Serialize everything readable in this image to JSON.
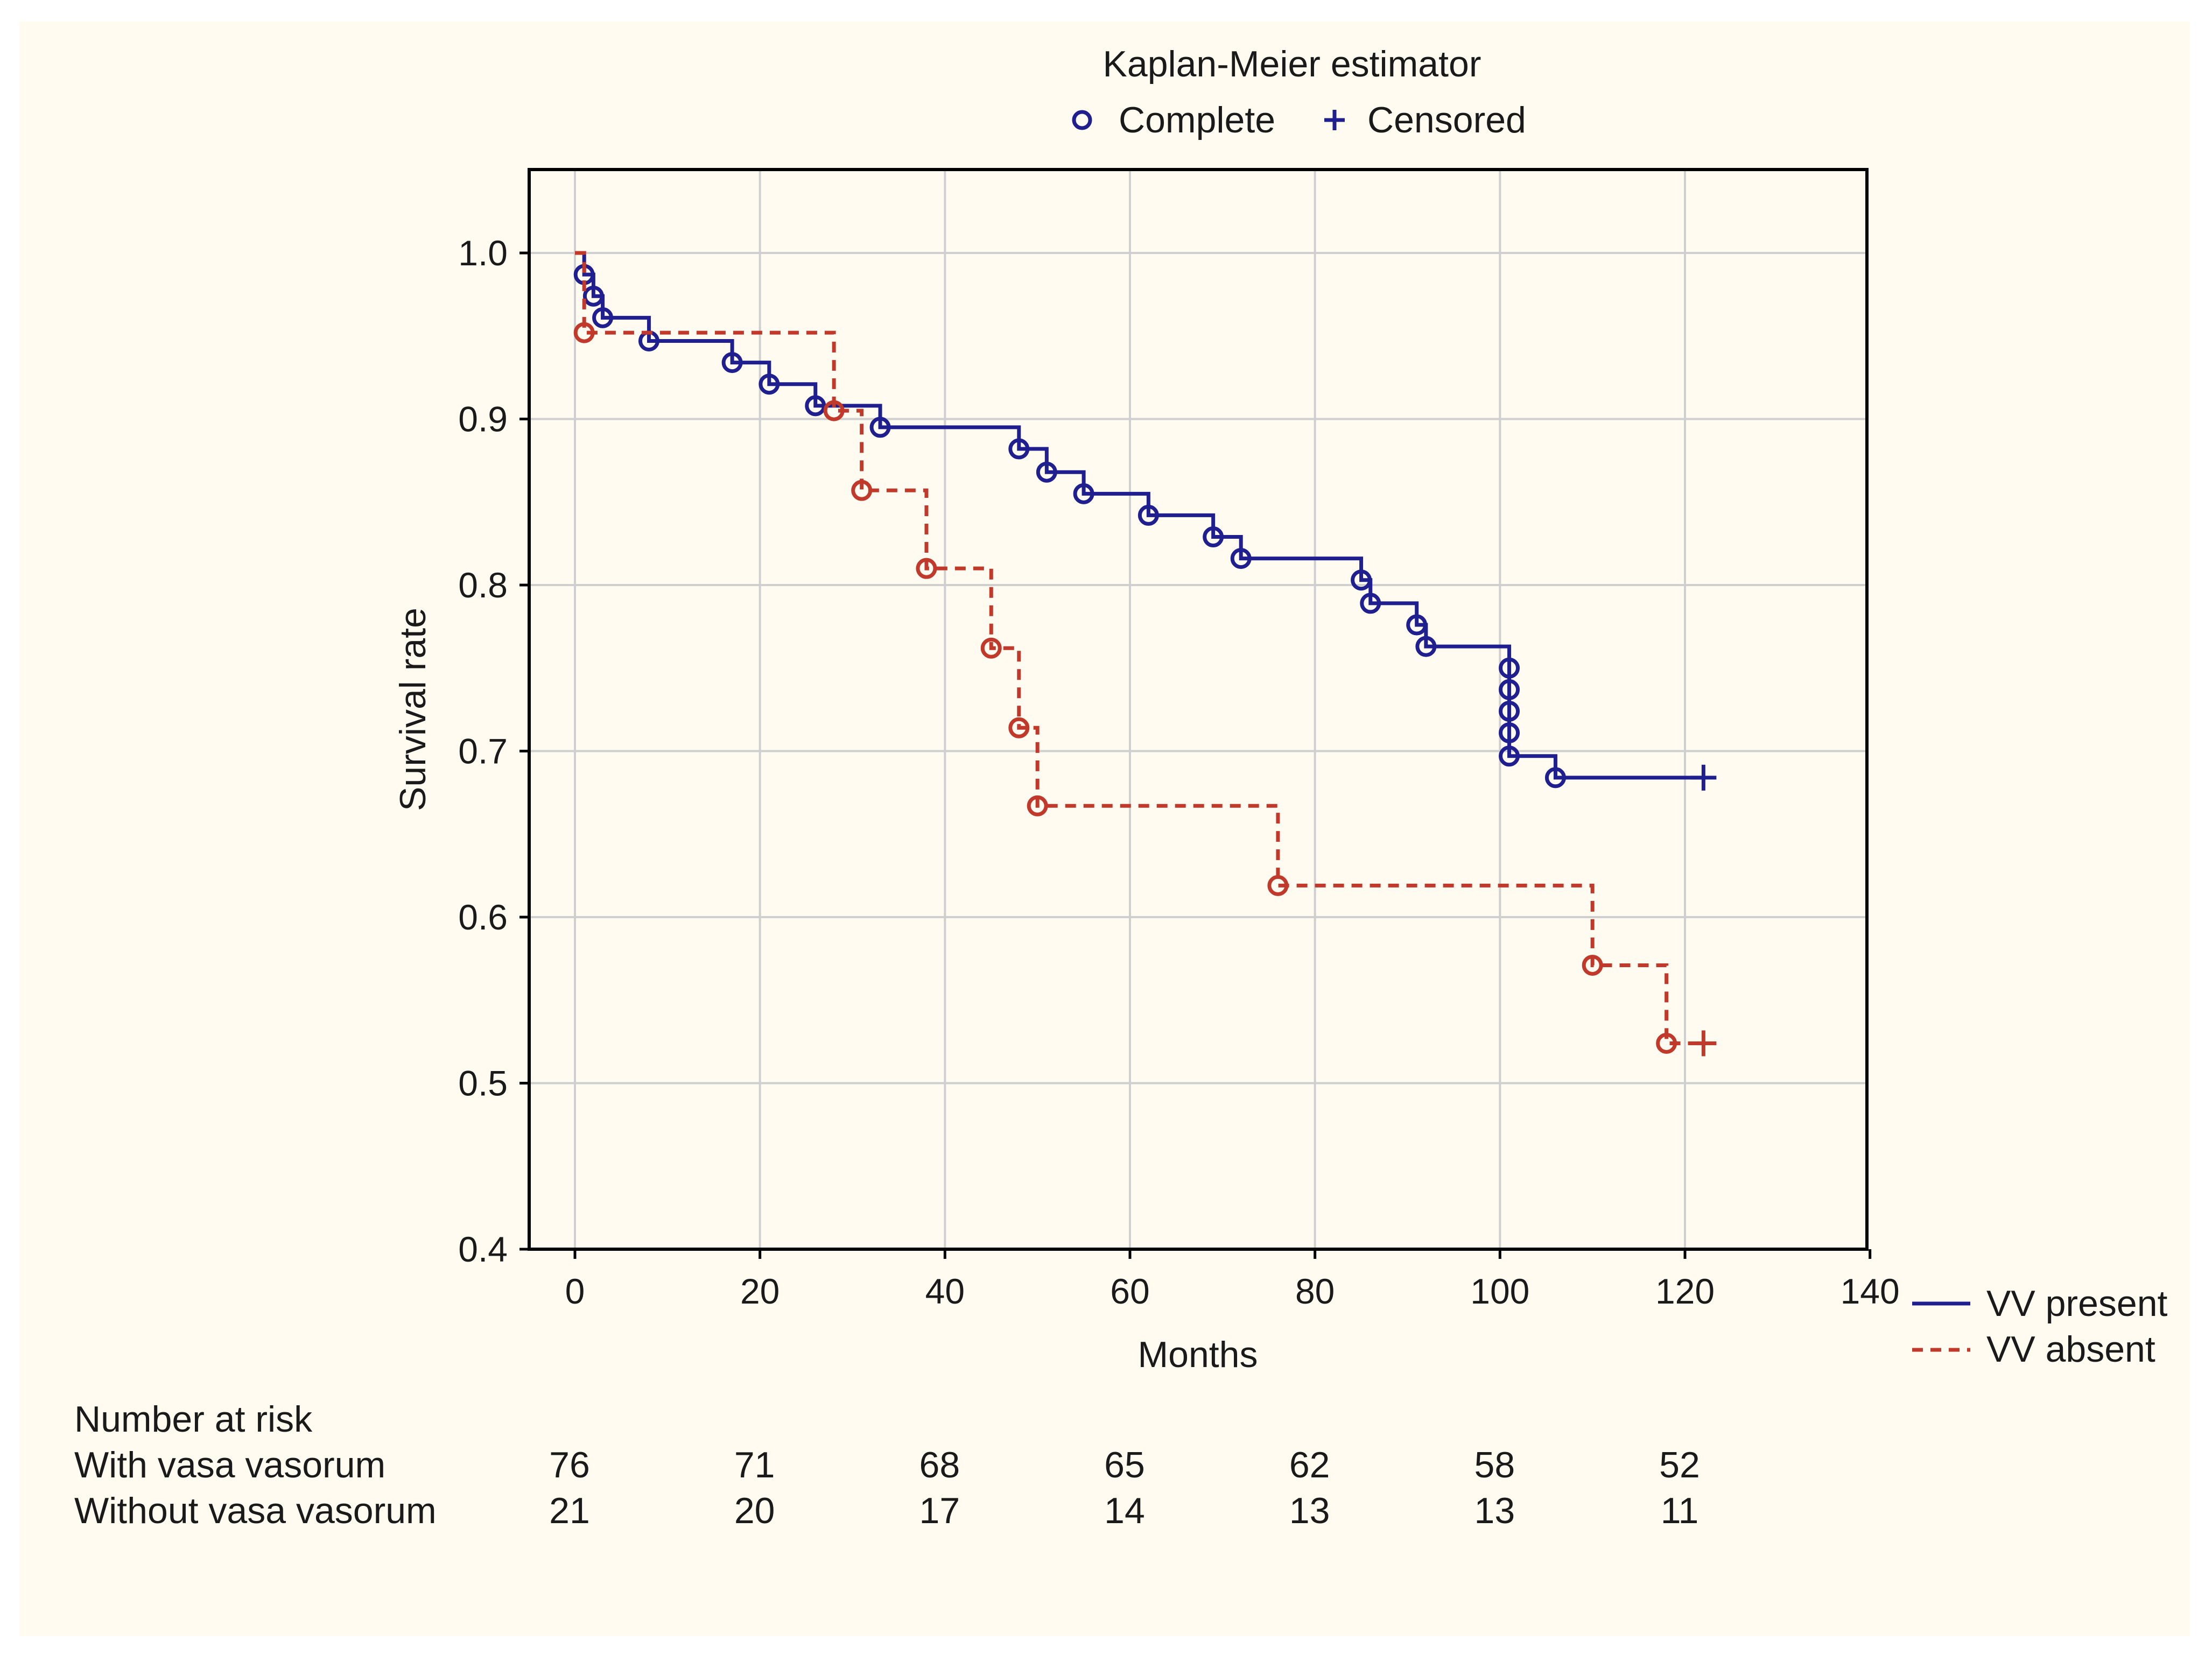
{
  "chart_data": {
    "type": "line",
    "title": "Kaplan-Meier estimator",
    "marker_legend": [
      {
        "symbol": "o",
        "label": "Complete"
      },
      {
        "symbol": "+",
        "label": "Censored"
      }
    ],
    "xlabel": "Months",
    "ylabel": "Survival rate",
    "xlim": [
      -5,
      140
    ],
    "ylim": [
      0.4,
      1.05
    ],
    "xticks": [
      0,
      20,
      40,
      60,
      80,
      100,
      120,
      140
    ],
    "yticks": [
      0.4,
      0.5,
      0.6,
      0.7,
      0.8,
      0.9,
      1.0
    ],
    "ytick_labels": [
      "0.4",
      "0.5",
      "0.6",
      "0.7",
      "0.8",
      "0.9",
      "1.0"
    ],
    "grid": true,
    "legend_position": "bottom-right, outside plot",
    "series": [
      {
        "name": "VV present",
        "color": "#1f1f8f",
        "line_style": "solid",
        "steps": [
          [
            0,
            1.0
          ],
          [
            1,
            0.987
          ],
          [
            2,
            0.974
          ],
          [
            3,
            0.961
          ],
          [
            8,
            0.947
          ],
          [
            17,
            0.934
          ],
          [
            21,
            0.921
          ],
          [
            26,
            0.908
          ],
          [
            33,
            0.895
          ],
          [
            48,
            0.882
          ],
          [
            51,
            0.868
          ],
          [
            55,
            0.855
          ],
          [
            62,
            0.842
          ],
          [
            69,
            0.829
          ],
          [
            72,
            0.816
          ],
          [
            85,
            0.803
          ],
          [
            86,
            0.789
          ],
          [
            91,
            0.776
          ],
          [
            92,
            0.763
          ],
          [
            101,
            0.697
          ],
          [
            106,
            0.684
          ]
        ],
        "complete_events": [
          [
            1,
            0.987
          ],
          [
            2,
            0.974
          ],
          [
            3,
            0.961
          ],
          [
            8,
            0.947
          ],
          [
            17,
            0.934
          ],
          [
            21,
            0.921
          ],
          [
            26,
            0.908
          ],
          [
            33,
            0.895
          ],
          [
            48,
            0.882
          ],
          [
            51,
            0.868
          ],
          [
            55,
            0.855
          ],
          [
            62,
            0.842
          ],
          [
            69,
            0.829
          ],
          [
            72,
            0.816
          ],
          [
            85,
            0.803
          ],
          [
            86,
            0.789
          ],
          [
            91,
            0.776
          ],
          [
            92,
            0.763
          ],
          [
            101,
            0.75
          ],
          [
            101,
            0.737
          ],
          [
            101,
            0.724
          ],
          [
            101,
            0.711
          ],
          [
            101,
            0.697
          ],
          [
            106,
            0.684
          ]
        ],
        "censored": [
          [
            122,
            0.684
          ]
        ],
        "end_x": 122
      },
      {
        "name": "VV absent",
        "color": "#c0392b",
        "line_style": "dashed",
        "steps": [
          [
            0,
            1.0
          ],
          [
            1,
            0.952
          ],
          [
            28,
            0.905
          ],
          [
            31,
            0.857
          ],
          [
            38,
            0.81
          ],
          [
            45,
            0.762
          ],
          [
            48,
            0.714
          ],
          [
            50,
            0.667
          ],
          [
            76,
            0.619
          ],
          [
            110,
            0.571
          ],
          [
            118,
            0.524
          ]
        ],
        "complete_events": [
          [
            1,
            0.952
          ],
          [
            28,
            0.905
          ],
          [
            31,
            0.857
          ],
          [
            38,
            0.81
          ],
          [
            45,
            0.762
          ],
          [
            48,
            0.714
          ],
          [
            50,
            0.667
          ],
          [
            76,
            0.619
          ],
          [
            110,
            0.571
          ],
          [
            118,
            0.524
          ]
        ],
        "censored": [
          [
            122,
            0.524
          ]
        ],
        "end_x": 122
      }
    ],
    "risk_table": {
      "title": "Number at risk",
      "rows": [
        {
          "label": "With vasa vasorum",
          "values": [
            "76",
            "71",
            "68",
            "65",
            "62",
            "58",
            "52"
          ]
        },
        {
          "label": "Without vasa vasorum",
          "values": [
            "21",
            "20",
            "17",
            "14",
            "13",
            "13",
            "11"
          ]
        }
      ],
      "at_months": [
        0,
        20,
        40,
        60,
        80,
        100,
        120
      ]
    }
  }
}
